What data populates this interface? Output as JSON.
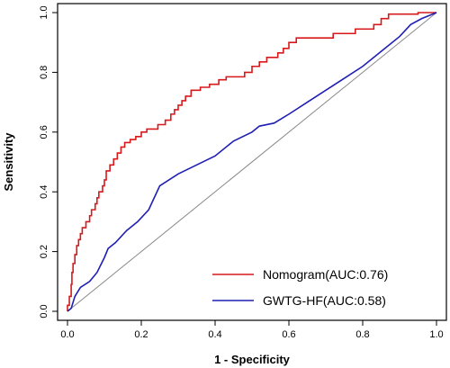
{
  "chart_data": {
    "type": "line",
    "title": "",
    "xlabel": "1 - Specificity",
    "ylabel": "Sensitivity",
    "xlim": [
      0,
      1
    ],
    "ylim": [
      0,
      1
    ],
    "x_ticks": [
      "0.0",
      "0.2",
      "0.4",
      "0.6",
      "0.8",
      "1.0"
    ],
    "y_ticks": [
      "0.0",
      "0.2",
      "0.4",
      "0.6",
      "0.8",
      "1.0"
    ],
    "grid": false,
    "legend_position": "bottom-right",
    "diagonal_reference": true,
    "series": [
      {
        "name": "Nomogram(AUC:0.76)",
        "color": "#d7191c",
        "step": true,
        "points": [
          [
            0,
            0
          ],
          [
            0,
            0.02
          ],
          [
            0.005,
            0.02
          ],
          [
            0.005,
            0.05
          ],
          [
            0.01,
            0.05
          ],
          [
            0.01,
            0.09
          ],
          [
            0.012,
            0.09
          ],
          [
            0.012,
            0.13
          ],
          [
            0.015,
            0.13
          ],
          [
            0.015,
            0.16
          ],
          [
            0.02,
            0.16
          ],
          [
            0.02,
            0.19
          ],
          [
            0.025,
            0.19
          ],
          [
            0.025,
            0.22
          ],
          [
            0.03,
            0.22
          ],
          [
            0.03,
            0.24
          ],
          [
            0.035,
            0.24
          ],
          [
            0.035,
            0.26
          ],
          [
            0.04,
            0.26
          ],
          [
            0.04,
            0.28
          ],
          [
            0.05,
            0.28
          ],
          [
            0.05,
            0.3
          ],
          [
            0.06,
            0.3
          ],
          [
            0.06,
            0.32
          ],
          [
            0.065,
            0.32
          ],
          [
            0.065,
            0.34
          ],
          [
            0.075,
            0.34
          ],
          [
            0.075,
            0.36
          ],
          [
            0.08,
            0.36
          ],
          [
            0.08,
            0.38
          ],
          [
            0.085,
            0.38
          ],
          [
            0.085,
            0.4
          ],
          [
            0.095,
            0.4
          ],
          [
            0.095,
            0.42
          ],
          [
            0.1,
            0.42
          ],
          [
            0.1,
            0.44
          ],
          [
            0.105,
            0.44
          ],
          [
            0.105,
            0.47
          ],
          [
            0.115,
            0.47
          ],
          [
            0.115,
            0.49
          ],
          [
            0.125,
            0.49
          ],
          [
            0.125,
            0.51
          ],
          [
            0.135,
            0.51
          ],
          [
            0.135,
            0.53
          ],
          [
            0.145,
            0.53
          ],
          [
            0.145,
            0.55
          ],
          [
            0.155,
            0.55
          ],
          [
            0.155,
            0.565
          ],
          [
            0.17,
            0.565
          ],
          [
            0.17,
            0.575
          ],
          [
            0.185,
            0.575
          ],
          [
            0.185,
            0.585
          ],
          [
            0.2,
            0.585
          ],
          [
            0.2,
            0.6
          ],
          [
            0.215,
            0.6
          ],
          [
            0.215,
            0.61
          ],
          [
            0.245,
            0.61
          ],
          [
            0.245,
            0.625
          ],
          [
            0.265,
            0.625
          ],
          [
            0.265,
            0.64
          ],
          [
            0.28,
            0.64
          ],
          [
            0.28,
            0.66
          ],
          [
            0.29,
            0.66
          ],
          [
            0.29,
            0.675
          ],
          [
            0.3,
            0.675
          ],
          [
            0.3,
            0.69
          ],
          [
            0.31,
            0.69
          ],
          [
            0.31,
            0.705
          ],
          [
            0.32,
            0.705
          ],
          [
            0.32,
            0.72
          ],
          [
            0.335,
            0.72
          ],
          [
            0.335,
            0.74
          ],
          [
            0.36,
            0.74
          ],
          [
            0.36,
            0.75
          ],
          [
            0.385,
            0.75
          ],
          [
            0.385,
            0.76
          ],
          [
            0.41,
            0.76
          ],
          [
            0.41,
            0.775
          ],
          [
            0.43,
            0.775
          ],
          [
            0.43,
            0.785
          ],
          [
            0.48,
            0.785
          ],
          [
            0.48,
            0.8
          ],
          [
            0.5,
            0.8
          ],
          [
            0.5,
            0.82
          ],
          [
            0.52,
            0.82
          ],
          [
            0.52,
            0.835
          ],
          [
            0.54,
            0.835
          ],
          [
            0.54,
            0.85
          ],
          [
            0.57,
            0.85
          ],
          [
            0.57,
            0.865
          ],
          [
            0.585,
            0.865
          ],
          [
            0.585,
            0.88
          ],
          [
            0.6,
            0.88
          ],
          [
            0.6,
            0.9
          ],
          [
            0.62,
            0.9
          ],
          [
            0.62,
            0.915
          ],
          [
            0.72,
            0.915
          ],
          [
            0.72,
            0.93
          ],
          [
            0.78,
            0.93
          ],
          [
            0.78,
            0.945
          ],
          [
            0.83,
            0.945
          ],
          [
            0.83,
            0.96
          ],
          [
            0.85,
            0.96
          ],
          [
            0.85,
            0.98
          ],
          [
            0.87,
            0.98
          ],
          [
            0.87,
            0.995
          ],
          [
            0.95,
            0.995
          ],
          [
            0.95,
            1.0
          ],
          [
            1.0,
            1.0
          ]
        ]
      },
      {
        "name": "GWTG-HF(AUC:0.58)",
        "color": "#1f1fb4",
        "step": false,
        "points": [
          [
            0,
            0
          ],
          [
            0.01,
            0.01
          ],
          [
            0.02,
            0.05
          ],
          [
            0.035,
            0.08
          ],
          [
            0.06,
            0.1
          ],
          [
            0.08,
            0.13
          ],
          [
            0.1,
            0.18
          ],
          [
            0.11,
            0.21
          ],
          [
            0.13,
            0.23
          ],
          [
            0.16,
            0.27
          ],
          [
            0.19,
            0.3
          ],
          [
            0.22,
            0.34
          ],
          [
            0.25,
            0.42
          ],
          [
            0.3,
            0.46
          ],
          [
            0.35,
            0.49
          ],
          [
            0.4,
            0.52
          ],
          [
            0.45,
            0.57
          ],
          [
            0.5,
            0.6
          ],
          [
            0.52,
            0.62
          ],
          [
            0.56,
            0.63
          ],
          [
            0.6,
            0.66
          ],
          [
            0.65,
            0.7
          ],
          [
            0.7,
            0.74
          ],
          [
            0.75,
            0.78
          ],
          [
            0.8,
            0.82
          ],
          [
            0.85,
            0.87
          ],
          [
            0.9,
            0.92
          ],
          [
            0.93,
            0.96
          ],
          [
            0.96,
            0.98
          ],
          [
            1.0,
            1.0
          ]
        ]
      }
    ]
  }
}
